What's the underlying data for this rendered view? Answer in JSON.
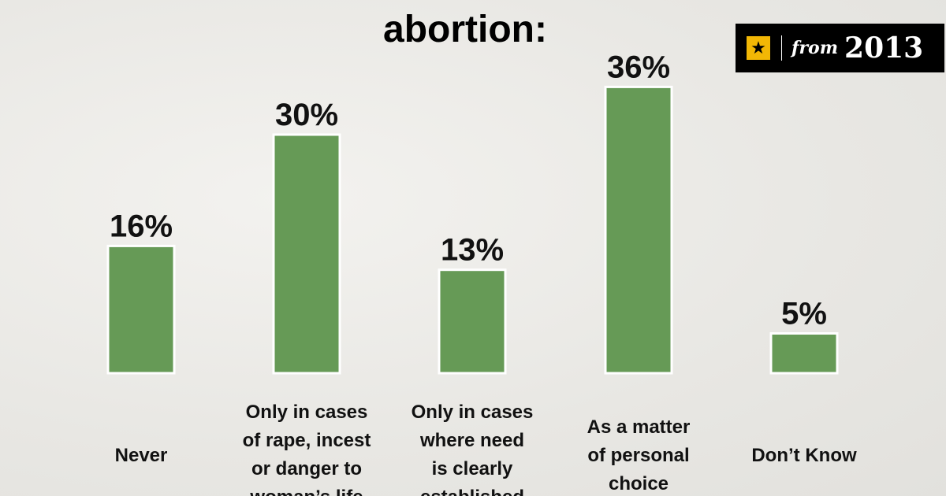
{
  "title": "abortion:",
  "badge": {
    "icon": "star-icon",
    "icon_glyph": "★",
    "from": "from",
    "year": "2013"
  },
  "colors": {
    "bar": "#669a56",
    "badge_bg": "#000000",
    "badge_star": "#f2b705"
  },
  "chart_data": {
    "type": "bar",
    "categories": [
      [
        "Never"
      ],
      [
        "Only in cases",
        "of rape, incest",
        "or danger to",
        "woman’s life"
      ],
      [
        "Only in cases",
        "where need",
        "is clearly",
        "established"
      ],
      [
        "As a matter",
        "of personal",
        "choice"
      ],
      [
        "Don’t Know"
      ]
    ],
    "values": [
      16,
      30,
      13,
      36,
      5
    ],
    "value_labels": [
      "16%",
      "30%",
      "13%",
      "36%",
      "5%"
    ],
    "title": "abortion:",
    "xlabel": "",
    "ylabel": "",
    "ylim": [
      0,
      36
    ],
    "grid": false,
    "legend": "none"
  }
}
